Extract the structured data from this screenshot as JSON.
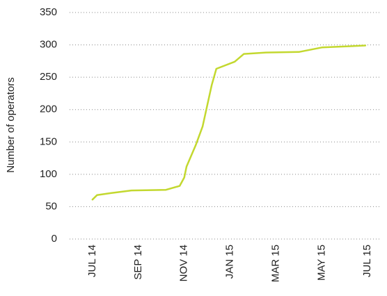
{
  "chart_data": {
    "type": "line",
    "y_label": "Number of operators",
    "x": [
      0,
      0.2,
      0.8,
      1.7,
      3.2,
      3.8,
      4.0,
      4.1,
      4.5,
      4.8,
      5.2,
      5.4,
      6.2,
      6.6,
      7.5,
      9.0,
      10.0,
      11.9
    ],
    "series": [
      {
        "color": "#c3d82f",
        "values": [
          61,
          68,
          71,
          75,
          76,
          82,
          95,
          112,
          145,
          174,
          238,
          263,
          274,
          286,
          288,
          289,
          296,
          299
        ]
      }
    ],
    "xlim": [
      -1,
      12.6
    ],
    "xticks": [
      {
        "value": 0,
        "label": "JUL 14"
      },
      {
        "value": 2,
        "label": "SEP 14"
      },
      {
        "value": 4,
        "label": "NOV 14"
      },
      {
        "value": 6,
        "label": "JAN 15"
      },
      {
        "value": 8,
        "label": "MAR 15"
      },
      {
        "value": 10,
        "label": "MAY 15"
      },
      {
        "value": 12,
        "label": "JUL 15"
      }
    ],
    "ylim": [
      0,
      350
    ],
    "yticks": [
      0,
      50,
      100,
      150,
      200,
      250,
      300,
      350
    ],
    "grid": true
  }
}
